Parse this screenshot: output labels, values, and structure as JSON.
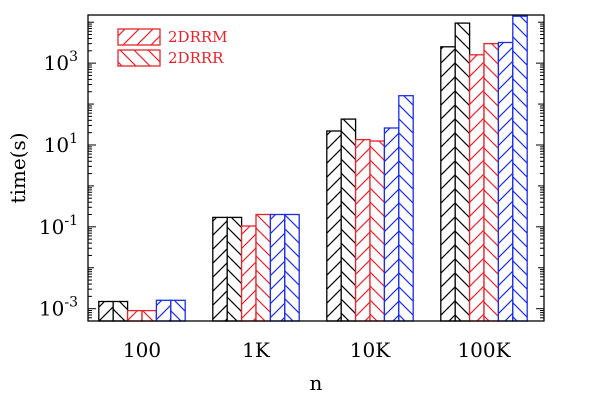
{
  "chart_data": {
    "type": "bar",
    "xlabel": "n",
    "ylabel": "time(s)",
    "y_scale": "log10",
    "ylim": [
      0.0005,
      15000
    ],
    "categories": [
      "100",
      "1K",
      "10K",
      "100K"
    ],
    "y_ticks": [
      {
        "value": 0.001,
        "base": "10",
        "exp": "-3"
      },
      {
        "value": 0.1,
        "base": "10",
        "exp": "-1"
      },
      {
        "value": 10,
        "base": "10",
        "exp": "1"
      },
      {
        "value": 1000,
        "base": "10",
        "exp": "3"
      }
    ],
    "legend": {
      "position": "top-left",
      "entries": [
        {
          "label": "2DRRM",
          "color": "#e8232a",
          "pattern": "hatch-forward"
        },
        {
          "label": "2DRRR",
          "color": "#e8232a",
          "pattern": "hatch-backward"
        }
      ]
    },
    "series": [
      {
        "color": "#000000",
        "pattern": "hatch-forward",
        "values": [
          0.0015,
          0.17,
          22,
          2500
        ]
      },
      {
        "color": "#000000",
        "pattern": "hatch-backward",
        "values": [
          0.0015,
          0.17,
          43,
          9500
        ]
      },
      {
        "color": "#e8232a",
        "pattern": "hatch-forward",
        "values": [
          0.0009,
          0.105,
          13.5,
          1600
        ]
      },
      {
        "color": "#e8232a",
        "pattern": "hatch-backward",
        "values": [
          0.0009,
          0.2,
          12.5,
          3000
        ]
      },
      {
        "color": "#1a2ee6",
        "pattern": "hatch-forward",
        "values": [
          0.0016,
          0.2,
          26,
          3200
        ]
      },
      {
        "color": "#1a2ee6",
        "pattern": "hatch-backward",
        "values": [
          0.0016,
          0.2,
          160,
          14000
        ]
      }
    ]
  }
}
